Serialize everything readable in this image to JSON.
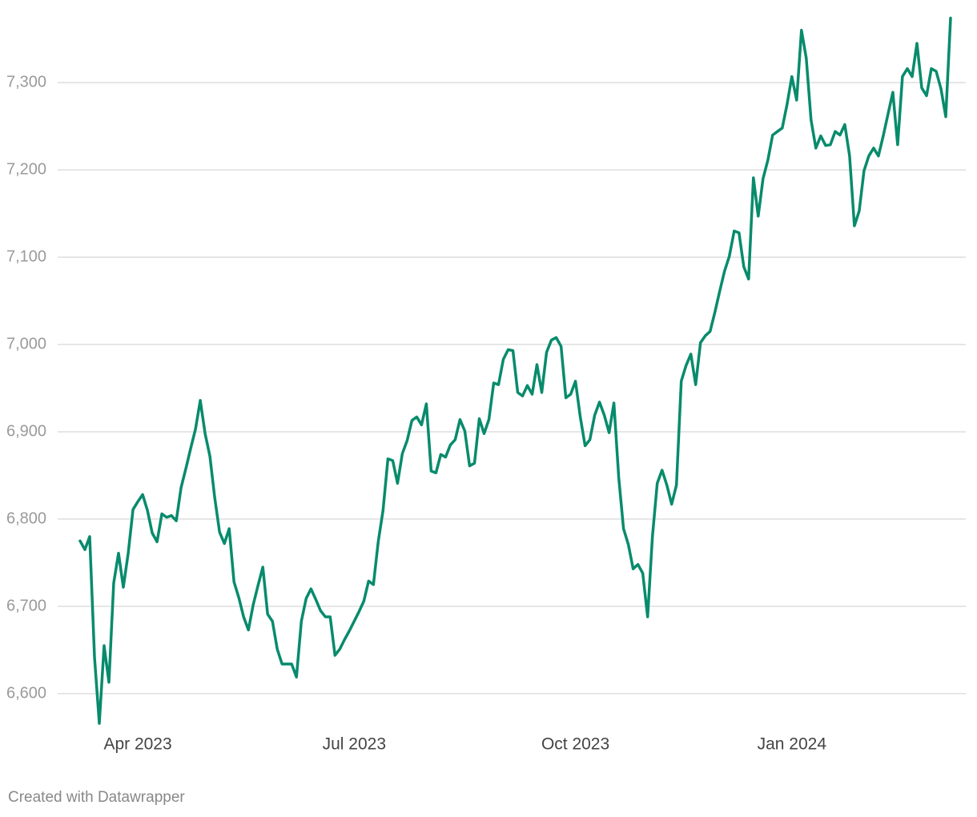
{
  "chart_data": {
    "type": "line",
    "categories": [
      null,
      null,
      null,
      null,
      null,
      null,
      null,
      null,
      null,
      null,
      null,
      null,
      "Apr 2023",
      null,
      null,
      null,
      null,
      null,
      null,
      null,
      null,
      null,
      null,
      null,
      null,
      null,
      null,
      null,
      null,
      null,
      null,
      null,
      null,
      null,
      null,
      null,
      null,
      null,
      null,
      null,
      null,
      null,
      null,
      null,
      null,
      null,
      null,
      null,
      null,
      null,
      null,
      null,
      null,
      null,
      null,
      null,
      null,
      "Jul 2023",
      null,
      null,
      null,
      null,
      null,
      null,
      null,
      null,
      null,
      null,
      null,
      null,
      null,
      null,
      null,
      null,
      null,
      null,
      null,
      null,
      null,
      null,
      null,
      null,
      null,
      null,
      null,
      null,
      null,
      null,
      null,
      null,
      null,
      null,
      null,
      null,
      null,
      null,
      null,
      null,
      null,
      null,
      null,
      null,
      null,
      "Oct 2023",
      null,
      null,
      null,
      null,
      null,
      null,
      null,
      null,
      null,
      null,
      null,
      null,
      null,
      null,
      null,
      null,
      null,
      null,
      null,
      null,
      null,
      null,
      null,
      null,
      null,
      null,
      null,
      null,
      null,
      null,
      null,
      null,
      null,
      null,
      null,
      null,
      null,
      null,
      null,
      null,
      null,
      null,
      null,
      null,
      "Jan 2024",
      null,
      null,
      null,
      null,
      null,
      null,
      null,
      null,
      null,
      null,
      null,
      null,
      null,
      null,
      null,
      null,
      null,
      null,
      null,
      null,
      null,
      null,
      null,
      null,
      null,
      null,
      null,
      null,
      null,
      null,
      null,
      null,
      null
    ],
    "series": [
      {
        "color": "#078b6c",
        "values": [
          6775,
          6765,
          6780,
          6642,
          6566,
          6655,
          6613,
          6727,
          6761,
          6722,
          6761,
          6811,
          6820,
          6828,
          6810,
          6784,
          6774,
          6806,
          6802,
          6804,
          6798,
          6836,
          6858,
          6881,
          6903,
          6936,
          6898,
          6872,
          6824,
          6785,
          6772,
          6789,
          6728,
          6710,
          6688,
          6673,
          6702,
          6724,
          6745,
          6691,
          6683,
          6651,
          6634,
          6634,
          6634,
          6619,
          6683,
          6709,
          6720,
          6708,
          6695,
          6688,
          6688,
          6644,
          6651,
          6662,
          6672,
          6683,
          6694,
          6706,
          6729,
          6725,
          6774,
          6810,
          6869,
          6867,
          6841,
          6875,
          6890,
          6913,
          6917,
          6908,
          6932,
          6855,
          6853,
          6874,
          6871,
          6885,
          6891,
          6914,
          6901,
          6861,
          6864,
          6915,
          6898,
          6914,
          6956,
          6954,
          6983,
          6994,
          6993,
          6945,
          6941,
          6953,
          6943,
          6977,
          6945,
          6991,
          7005,
          7008,
          6998,
          6939,
          6943,
          6958,
          6917,
          6884,
          6891,
          6919,
          6934,
          6919,
          6899,
          6933,
          6848,
          6789,
          6771,
          6743,
          6748,
          6738,
          6688,
          6780,
          6841,
          6856,
          6839,
          6817,
          6839,
          6958,
          6976,
          6989,
          6954,
          7002,
          7010,
          7015,
          7037,
          7061,
          7084,
          7101,
          7130,
          7128,
          7089,
          7075,
          7191,
          7147,
          7190,
          7211,
          7240,
          7244,
          7248,
          7275,
          7307,
          7280,
          7360,
          7328,
          7257,
          7225,
          7239,
          7228,
          7229,
          7244,
          7240,
          7252,
          7216,
          7136,
          7153,
          7199,
          7216,
          7225,
          7216,
          7239,
          7264,
          7289,
          7229,
          7307,
          7316,
          7307,
          7345,
          7294,
          7285,
          7316,
          7313,
          7293,
          7261,
          7374
        ]
      }
    ],
    "ylim": [
      6550,
      7380
    ],
    "yticks": [
      {
        "value": 6600,
        "label": "6,600"
      },
      {
        "value": 6700,
        "label": "6,700"
      },
      {
        "value": 6800,
        "label": "6,800"
      },
      {
        "value": 6900,
        "label": "6,900"
      },
      {
        "value": 7000,
        "label": "7,000"
      },
      {
        "value": 7100,
        "label": "7,100"
      },
      {
        "value": 7200,
        "label": "7,200"
      },
      {
        "value": 7300,
        "label": "7,300"
      }
    ],
    "grid": true,
    "footer": "Created with Datawrapper"
  }
}
